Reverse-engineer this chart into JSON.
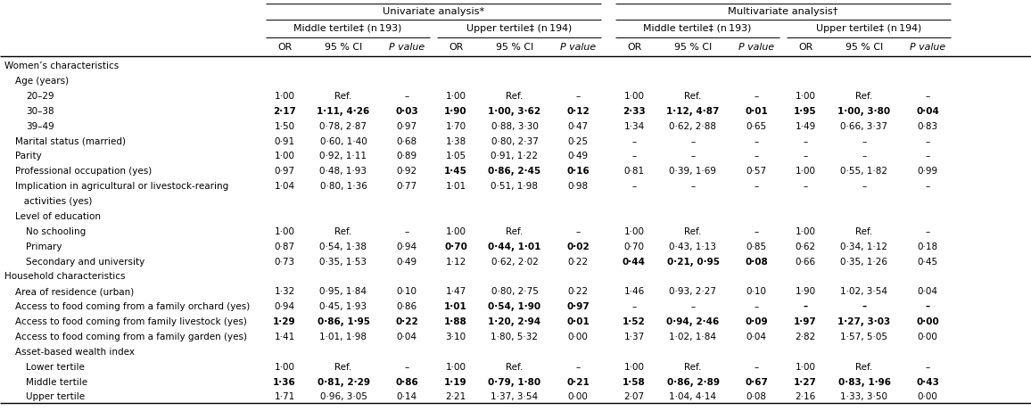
{
  "uni_label": "Univariate analysis*",
  "multi_label": "Multivariate analysis†",
  "group_labels": [
    "Middle tertile‡ (n 193)",
    "Upper tertile‡ (n 194)",
    "Middle tertile‡ (n 193)",
    "Upper tertile‡ (n 194)"
  ],
  "sub_headers": [
    "OR",
    "95 % CI",
    "P value"
  ],
  "rows": [
    {
      "label": "Women’s characteristics",
      "indent": 0,
      "data": null
    },
    {
      "label": "Age (years)",
      "indent": 1,
      "data": null
    },
    {
      "label": "20–29",
      "indent": 2,
      "data": [
        "1·00",
        "Ref.",
        "–",
        "1·00",
        "Ref.",
        "–",
        "1·00",
        "Ref.",
        "–",
        "1·00",
        "Ref.",
        "–"
      ]
    },
    {
      "label": "30–38",
      "indent": 2,
      "data": [
        "2·17",
        "1·11, 4·26",
        "0·03",
        "1·90",
        "1·00, 3·62",
        "0·12",
        "2·33",
        "1·12, 4·87",
        "0·01",
        "1·95",
        "1·00, 3·80",
        "0·04"
      ]
    },
    {
      "label": "39–49",
      "indent": 2,
      "data": [
        "1·50",
        "0·78, 2·87",
        "0·97",
        "1·70",
        "0·88, 3·30",
        "0·47",
        "1·34",
        "0·62, 2·88",
        "0·65",
        "1·49",
        "0·66, 3·37",
        "0·83"
      ]
    },
    {
      "label": "Marital status (married)",
      "indent": 1,
      "data": [
        "0·91",
        "0·60, 1·40",
        "0·68",
        "1·38",
        "0·80, 2·37",
        "0·25",
        "–",
        "–",
        "–",
        "–",
        "–",
        "–"
      ]
    },
    {
      "label": "Parity",
      "indent": 1,
      "data": [
        "1·00",
        "0·92, 1·11",
        "0·89",
        "1·05",
        "0·91, 1·22",
        "0·49",
        "–",
        "–",
        "–",
        "–",
        "–",
        "–"
      ]
    },
    {
      "label": "Professional occupation (yes)",
      "indent": 1,
      "data": [
        "0·97",
        "0·48, 1·93",
        "0·92",
        "1·45",
        "0·86, 2·45",
        "0·16",
        "0·81",
        "0·39, 1·69",
        "0·57",
        "1·00",
        "0·55, 1·82",
        "0·99"
      ]
    },
    {
      "label": "Implication in agricultural or livestock-rearing",
      "indent": 1,
      "data": [
        "1·04",
        "0·80, 1·36",
        "0·77",
        "1·01",
        "0·51, 1·98",
        "0·98",
        "–",
        "–",
        "–",
        "–",
        "–",
        "–"
      ]
    },
    {
      "label": "   activities (yes)",
      "indent": 1,
      "data": null
    },
    {
      "label": "Level of education",
      "indent": 1,
      "data": null
    },
    {
      "label": "No schooling",
      "indent": 2,
      "data": [
        "1·00",
        "Ref.",
        "–",
        "1·00",
        "Ref.",
        "–",
        "1·00",
        "Ref.",
        "–",
        "1·00",
        "Ref.",
        "–"
      ]
    },
    {
      "label": "Primary",
      "indent": 2,
      "data": [
        "0·87",
        "0·54, 1·38",
        "0·94",
        "0·70",
        "0·44, 1·01",
        "0·02",
        "0·70",
        "0·43, 1·13",
        "0·85",
        "0·62",
        "0·34, 1·12",
        "0·18"
      ]
    },
    {
      "label": "Secondary and university",
      "indent": 2,
      "data": [
        "0·73",
        "0·35, 1·53",
        "0·49",
        "1·12",
        "0·62, 2·02",
        "0·22",
        "0·44",
        "0·21, 0·95",
        "0·08",
        "0·66",
        "0·35, 1·26",
        "0·45"
      ]
    },
    {
      "label": "Household characteristics",
      "indent": 0,
      "data": null
    },
    {
      "label": "Area of residence (urban)",
      "indent": 1,
      "data": [
        "1·32",
        "0·95, 1·84",
        "0·10",
        "1·47",
        "0·80, 2·75",
        "0·22",
        "1·46",
        "0·93, 2·27",
        "0·10",
        "1·90",
        "1·02, 3·54",
        "0·04"
      ]
    },
    {
      "label": "Access to food coming from a family orchard (yes)",
      "indent": 1,
      "data": [
        "0·94",
        "0·45, 1·93",
        "0·86",
        "1·01",
        "0·54, 1·90",
        "0·97",
        "–",
        "–",
        "–",
        "–",
        "–",
        "–"
      ]
    },
    {
      "label": "Access to food coming from family livestock (yes)",
      "indent": 1,
      "data": [
        "1·29",
        "0·86, 1·95",
        "0·22",
        "1·88",
        "1·20, 2·94",
        "0·01",
        "1·52",
        "0·94, 2·46",
        "0·09",
        "1·97",
        "1·27, 3·03",
        "0·00"
      ]
    },
    {
      "label": "Access to food coming from a family garden (yes)",
      "indent": 1,
      "data": [
        "1·41",
        "1·01, 1·98",
        "0·04",
        "3·10",
        "1·80, 5·32",
        "0·00",
        "1·37",
        "1·02, 1·84",
        "0·04",
        "2·82",
        "1·57, 5·05",
        "0·00"
      ]
    },
    {
      "label": "Asset-based wealth index",
      "indent": 1,
      "data": null
    },
    {
      "label": "Lower tertile",
      "indent": 2,
      "data": [
        "1·00",
        "Ref.",
        "–",
        "1·00",
        "Ref.",
        "–",
        "1·00",
        "Ref.",
        "–",
        "1·00",
        "Ref.",
        "–"
      ]
    },
    {
      "label": "Middle tertile",
      "indent": 2,
      "data": [
        "1·36",
        "0·81, 2·29",
        "0·86",
        "1·19",
        "0·79, 1·80",
        "0·21",
        "1·58",
        "0·86, 2·89",
        "0·67",
        "1·27",
        "0·83, 1·96",
        "0·43"
      ]
    },
    {
      "label": "Upper tertile",
      "indent": 2,
      "data": [
        "1·71",
        "0·96, 3·05",
        "0·14",
        "2·21",
        "1·37, 3·54",
        "0·00",
        "2·07",
        "1·04, 4·14",
        "0·08",
        "2·16",
        "1·33, 3·50",
        "0·00"
      ]
    }
  ],
  "bold_map": {
    "3": [
      0,
      1,
      2,
      3,
      4,
      5,
      6,
      7,
      8,
      9,
      10,
      11
    ],
    "7": [
      3,
      4,
      5
    ],
    "12": [
      3,
      4,
      5
    ],
    "13": [
      6,
      7,
      8
    ],
    "14": [
      0,
      1,
      2,
      9,
      10,
      11
    ],
    "16": [
      3,
      4,
      5,
      9,
      10,
      11
    ],
    "17": [
      0,
      1,
      2,
      3,
      4,
      5,
      6,
      7,
      8,
      9,
      10,
      11
    ],
    "21": [
      0,
      1,
      2,
      3,
      4,
      5,
      6,
      7,
      8,
      9,
      10,
      11
    ]
  },
  "figsize": [
    11.56,
    4.61
  ],
  "dpi": 100,
  "fontsize": 7.5,
  "header_fontsize": 8.2,
  "bg_color": "#ffffff"
}
